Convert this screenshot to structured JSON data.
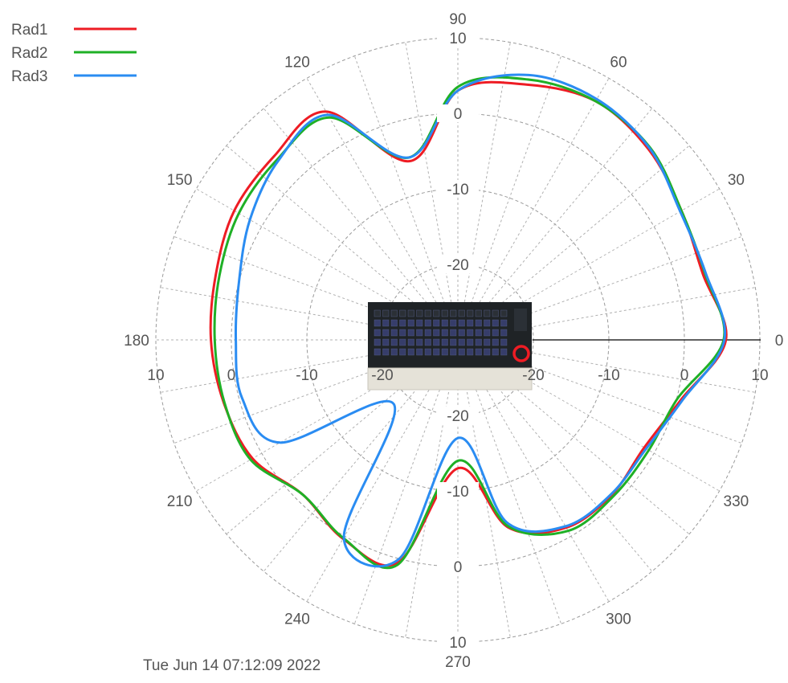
{
  "timestamp": "Tue Jun 14 07:12:09 2022",
  "device_icon": "keyboard-icon",
  "marker_icon": "antenna-position-marker",
  "chart_data": {
    "type": "line",
    "projection": "polar",
    "angle_unit": "deg",
    "r_unit": "dBi",
    "rlim": [
      -30,
      10
    ],
    "r_ticks": [
      10,
      0,
      -10,
      -20
    ],
    "r_tick_labels_vertical": [
      "10",
      "0",
      "-10",
      "-20",
      "-20",
      "-10",
      "0",
      "10"
    ],
    "r_tick_labels_horizontal": [
      "10",
      "0",
      "-10",
      "-20",
      "-20",
      "-10",
      "0",
      "10"
    ],
    "angle_ticks": [
      0,
      30,
      60,
      90,
      120,
      150,
      180,
      210,
      240,
      270,
      300,
      330
    ],
    "angle_tick_labels": [
      "0",
      "30",
      "60",
      "90",
      "120",
      "150",
      "180",
      "210",
      "240",
      "270",
      "300",
      "330"
    ],
    "grid": true,
    "legend_position": "top-left",
    "x": [
      0,
      15,
      30,
      45,
      60,
      75,
      90,
      105,
      120,
      135,
      150,
      165,
      180,
      195,
      210,
      225,
      240,
      255,
      270,
      285,
      300,
      315,
      330,
      345
    ],
    "series": [
      {
        "name": "Rad1",
        "color": "#ee1c24",
        "values": [
          5.5,
          3.6,
          4.2,
          5.7,
          6.5,
          5.0,
          3.0,
          -5.5,
          4.9,
          4.4,
          4.2,
          3.2,
          2.7,
          2.1,
          1.4,
          -1.0,
          0.4,
          0.5,
          -13.0,
          -4.3,
          -1.3,
          -1.1,
          -1.5,
          0.6
        ]
      },
      {
        "name": "Rad2",
        "color": "#1fb026",
        "values": [
          5.2,
          3.9,
          4.2,
          6.0,
          6.5,
          5.7,
          3.5,
          -5.0,
          4.0,
          3.8,
          3.5,
          2.7,
          2.2,
          2.0,
          1.7,
          -1.0,
          0.3,
          0.8,
          -14.0,
          -4.5,
          -0.8,
          -0.8,
          -0.8,
          0.1
        ]
      },
      {
        "name": "Rad3",
        "color": "#2a8cf2",
        "values": [
          5.3,
          4.0,
          4.0,
          5.9,
          6.8,
          6.3,
          3.0,
          -5.0,
          4.4,
          3.6,
          1.8,
          0.0,
          -0.6,
          -0.4,
          -2.8,
          -18.0,
          0.2,
          0.0,
          -17.0,
          -5.0,
          -1.5,
          -1.2,
          -1.2,
          0.8
        ]
      }
    ]
  }
}
